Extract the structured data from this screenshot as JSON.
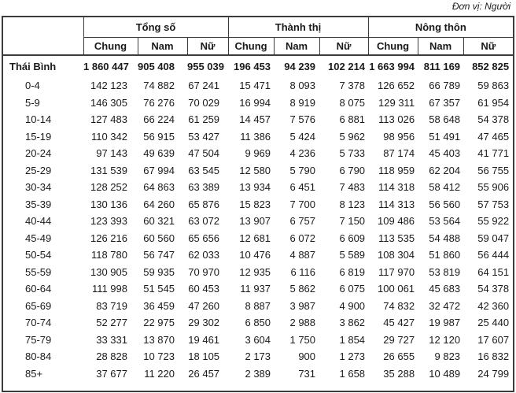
{
  "unit_note": "Đơn vị: Người",
  "table": {
    "groups": [
      {
        "label": "Tổng số"
      },
      {
        "label": "Thành thị"
      },
      {
        "label": "Nông thôn"
      }
    ],
    "sub_headers": [
      "Chung",
      "Nam",
      "Nữ"
    ],
    "rows": [
      {
        "label": "Thái Bình",
        "bold": true,
        "values": [
          "1 860 447",
          "905 408",
          "955 039",
          "196 453",
          "94 239",
          "102 214",
          "1 663 994",
          "811 169",
          "852 825"
        ]
      },
      {
        "label": "0-4",
        "bold": false,
        "values": [
          "142 123",
          "74 882",
          "67 241",
          "15 471",
          "8 093",
          "7 378",
          "126 652",
          "66 789",
          "59 863"
        ]
      },
      {
        "label": "5-9",
        "bold": false,
        "values": [
          "146 305",
          "76 276",
          "70 029",
          "16 994",
          "8 919",
          "8 075",
          "129 311",
          "67 357",
          "61 954"
        ]
      },
      {
        "label": "10-14",
        "bold": false,
        "values": [
          "127 483",
          "66 224",
          "61 259",
          "14 457",
          "7 576",
          "6 881",
          "113 026",
          "58 648",
          "54 378"
        ]
      },
      {
        "label": "15-19",
        "bold": false,
        "values": [
          "110 342",
          "56 915",
          "53 427",
          "11 386",
          "5 424",
          "5 962",
          "98 956",
          "51 491",
          "47 465"
        ]
      },
      {
        "label": "20-24",
        "bold": false,
        "values": [
          "97 143",
          "49 639",
          "47 504",
          "9 969",
          "4 236",
          "5 733",
          "87 174",
          "45 403",
          "41 771"
        ]
      },
      {
        "label": "25-29",
        "bold": false,
        "values": [
          "131 539",
          "67 994",
          "63 545",
          "12 580",
          "5 790",
          "6 790",
          "118 959",
          "62 204",
          "56 755"
        ]
      },
      {
        "label": "30-34",
        "bold": false,
        "values": [
          "128 252",
          "64 863",
          "63 389",
          "13 934",
          "6 451",
          "7 483",
          "114 318",
          "58 412",
          "55 906"
        ]
      },
      {
        "label": "35-39",
        "bold": false,
        "values": [
          "130 136",
          "64 260",
          "65 876",
          "15 823",
          "7 700",
          "8 123",
          "114 313",
          "56 560",
          "57 753"
        ]
      },
      {
        "label": "40-44",
        "bold": false,
        "values": [
          "123 393",
          "60 321",
          "63 072",
          "13 907",
          "6 757",
          "7 150",
          "109 486",
          "53 564",
          "55 922"
        ]
      },
      {
        "label": "45-49",
        "bold": false,
        "values": [
          "126 216",
          "60 560",
          "65 656",
          "12 681",
          "6 072",
          "6 609",
          "113 535",
          "54 488",
          "59 047"
        ]
      },
      {
        "label": "50-54",
        "bold": false,
        "values": [
          "118 780",
          "56 747",
          "62 033",
          "10 476",
          "4 887",
          "5 589",
          "108 304",
          "51 860",
          "56 444"
        ]
      },
      {
        "label": "55-59",
        "bold": false,
        "values": [
          "130 905",
          "59 935",
          "70 970",
          "12 935",
          "6 116",
          "6 819",
          "117 970",
          "53 819",
          "64 151"
        ]
      },
      {
        "label": "60-64",
        "bold": false,
        "values": [
          "111 998",
          "51 545",
          "60 453",
          "11 937",
          "5 862",
          "6 075",
          "100 061",
          "45 683",
          "54 378"
        ]
      },
      {
        "label": "65-69",
        "bold": false,
        "values": [
          "83 719",
          "36 459",
          "47 260",
          "8 887",
          "3 987",
          "4 900",
          "74 832",
          "32 472",
          "42 360"
        ]
      },
      {
        "label": "70-74",
        "bold": false,
        "values": [
          "52 277",
          "22 975",
          "29 302",
          "6 850",
          "2 988",
          "3 862",
          "45 427",
          "19 987",
          "25 440"
        ]
      },
      {
        "label": "75-79",
        "bold": false,
        "values": [
          "33 331",
          "13 870",
          "19 461",
          "3 604",
          "1 750",
          "1 854",
          "29 727",
          "12 120",
          "17 607"
        ]
      },
      {
        "label": "80-84",
        "bold": false,
        "values": [
          "28 828",
          "10 723",
          "18 105",
          "2 173",
          "900",
          "1 273",
          "26 655",
          "9 823",
          "16 832"
        ]
      },
      {
        "label": "85+",
        "bold": false,
        "values": [
          "37 677",
          "11 220",
          "26 457",
          "2 389",
          "731",
          "1 658",
          "35 288",
          "10 489",
          "24 799"
        ]
      }
    ]
  }
}
